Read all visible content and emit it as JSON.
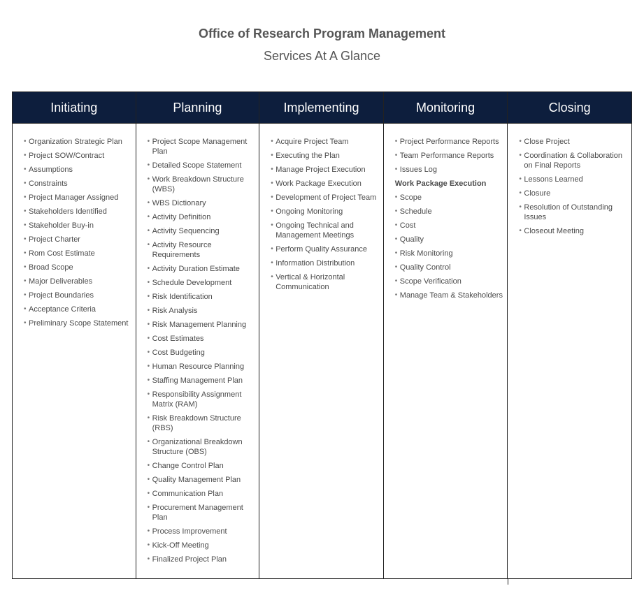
{
  "header": {
    "title": "Office of Research Program Management",
    "subtitle": "Services At A Glance"
  },
  "columns": [
    {
      "title": "Initiating",
      "items": [
        "Organization Strategic Plan",
        "Project SOW/Contract",
        "Assumptions",
        "Constraints",
        "Project Manager Assigned",
        "Stakeholders Identified",
        "Stakeholder Buy-in",
        "Project Charter",
        "Rom Cost Estimate",
        "Broad Scope",
        "Major Deliverables",
        "Project Boundaries",
        "Acceptance Criteria",
        "Preliminary Scope Statement"
      ]
    },
    {
      "title": "Planning",
      "items": [
        "Project Scope Management Plan",
        "Detailed Scope Statement",
        "Work Breakdown Structure (WBS)",
        "WBS Dictionary",
        "Activity Definition",
        "Activity Sequencing",
        "Activity Resource Requirements",
        "Activity Duration Estimate",
        "Schedule Development",
        "Risk Identification",
        "Risk Analysis",
        "Risk Management Planning",
        "Cost Estimates",
        "Cost Budgeting",
        "Human Resource Planning",
        "Staffing Management Plan",
        "Responsibility Assignment Matrix (RAM)",
        "Risk Breakdown Structure (RBS)",
        "Organizational Breakdown Structure (OBS)",
        "Change Control Plan",
        "Quality Management Plan",
        "Communication Plan",
        "Procurement Management Plan",
        "Process Improvement",
        "Kick-Off Meeting",
        "Finalized Project Plan"
      ]
    },
    {
      "title": "Implementing",
      "items": [
        "Acquire Project Team",
        "Executing the Plan",
        "Manage Project Execution",
        "Work Package Execution",
        "Development of Project Team",
        "Ongoing Monitoring",
        "Ongoing Technical and Management Meetings",
        "Perform Quality Assurance",
        "Information Distribution",
        "Vertical & Horizontal Communication"
      ]
    },
    {
      "title": "Monitoring",
      "items": [
        "Project Performance Reports",
        "Team Performance Reports",
        "Issues Log"
      ],
      "subheading": "Work Package Execution",
      "subitems": [
        "Scope",
        "Schedule",
        "Cost",
        "Quality",
        "Risk Monitoring",
        "Quality Control",
        "Scope Verification",
        "Manage Team & Stakeholders"
      ]
    },
    {
      "title": "Closing",
      "items": [
        "Close Project",
        "Coordination & Collaboration on Final Reports",
        "Lessons Learned",
        "Closure",
        "Resolution of Outstanding Issues",
        "Closeout Meeting"
      ]
    }
  ]
}
